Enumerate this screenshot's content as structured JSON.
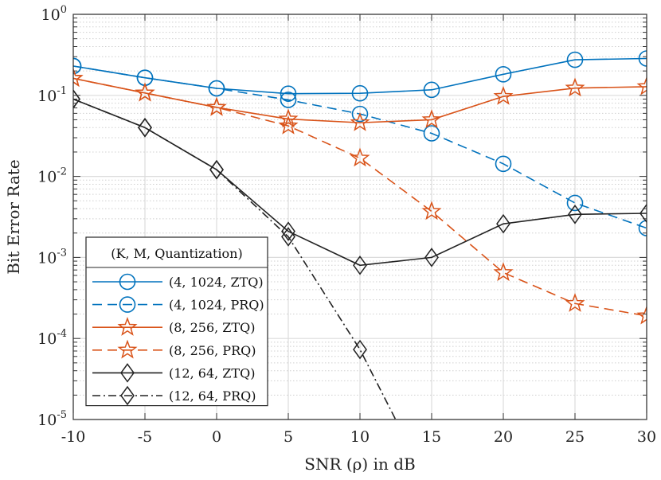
{
  "chart_data": {
    "type": "line",
    "xlabel": "SNR (ρ) in dB",
    "ylabel": "Bit Error Rate",
    "xlim": [
      -10,
      30
    ],
    "ylim": [
      1e-05,
      1
    ],
    "yscale": "log",
    "grid": true,
    "legend_position": "bottom-left",
    "legend_title": "(K, M, Quantization)",
    "x_ticks": [
      "-10",
      "-5",
      "0",
      "5",
      "10",
      "15",
      "20",
      "25",
      "30"
    ],
    "y_ticks": [
      {
        "base": "10",
        "exp": "-5"
      },
      {
        "base": "10",
        "exp": "-4"
      },
      {
        "base": "10",
        "exp": "-3"
      },
      {
        "base": "10",
        "exp": "-2"
      },
      {
        "base": "10",
        "exp": "-1"
      },
      {
        "base": "10",
        "exp": "0"
      }
    ],
    "x": [
      -10,
      -5,
      0,
      5,
      10,
      15,
      20,
      25,
      30
    ],
    "series": [
      {
        "name": "(4, 1024, ZTQ)",
        "color": "#0072BD",
        "dash": "solid",
        "marker": "circle",
        "values": [
          0.23,
          0.165,
          0.122,
          0.105,
          0.106,
          0.117,
          0.182,
          0.275,
          0.285
        ]
      },
      {
        "name": "(4, 1024, PRQ)",
        "color": "#0072BD",
        "dash": "dashed",
        "marker": "circle",
        "values": [
          0.23,
          0.165,
          0.122,
          0.088,
          0.059,
          0.034,
          0.0143,
          0.0047,
          0.0023
        ]
      },
      {
        "name": "(8, 256, ZTQ)",
        "color": "#D95319",
        "dash": "solid",
        "marker": "star",
        "values": [
          0.162,
          0.107,
          0.071,
          0.051,
          0.046,
          0.05,
          0.097,
          0.123,
          0.128
        ]
      },
      {
        "name": "(8, 256, PRQ)",
        "color": "#D95319",
        "dash": "dashed",
        "marker": "star",
        "values": [
          0.162,
          0.107,
          0.071,
          0.042,
          0.0168,
          0.0037,
          0.00065,
          0.00027,
          0.00019
        ]
      },
      {
        "name": "(12, 64, ZTQ)",
        "color": "#222222",
        "dash": "solid",
        "marker": "diamond",
        "values": [
          0.09,
          0.04,
          0.0121,
          0.0021,
          0.0008,
          0.001,
          0.0026,
          0.0034,
          0.0035
        ]
      },
      {
        "name": "(12, 64, PRQ)",
        "color": "#222222",
        "dash": "dashdot",
        "marker": "diamond",
        "values": [
          0.09,
          0.04,
          0.0121,
          0.0018,
          7.3e-05,
          null,
          null,
          null,
          null
        ],
        "tail_to_x": 12.6
      }
    ]
  }
}
